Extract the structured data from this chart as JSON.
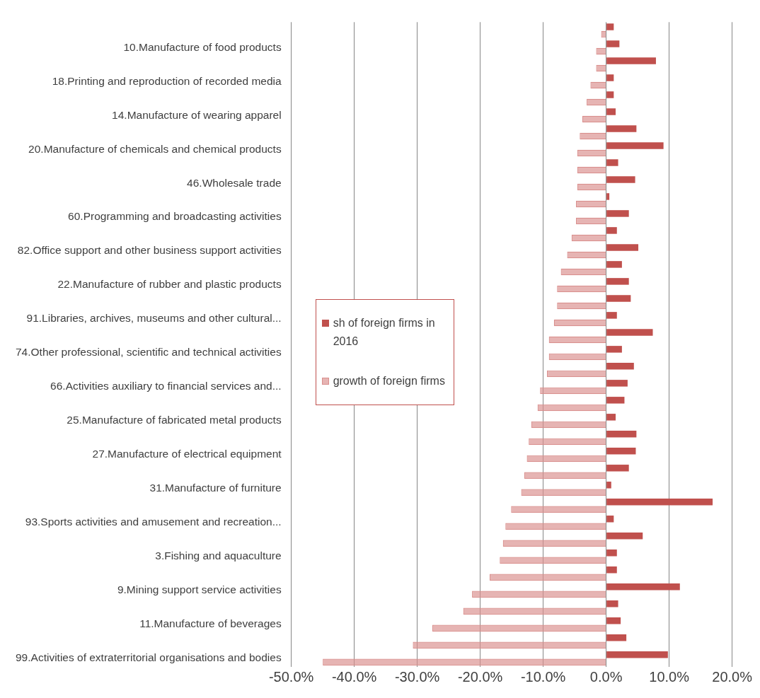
{
  "chart_data": {
    "type": "bar",
    "orientation": "horizontal",
    "categories": [
      null,
      "10.Manufacture of food products",
      null,
      "18.Printing and reproduction of recorded media",
      null,
      "14.Manufacture of wearing apparel",
      null,
      "20.Manufacture of chemicals and chemical products",
      null,
      "46.Wholesale trade",
      null,
      "60.Programming and broadcasting activities",
      null,
      "82.Office support and other business support activities",
      null,
      "22.Manufacture of rubber and plastic products",
      null,
      "91.Libraries, archives, museums and other cultural...",
      null,
      "74.Other professional, scientific and technical activities",
      null,
      "66.Activities auxiliary to financial services and...",
      null,
      "25.Manufacture of fabricated metal products",
      null,
      "27.Manufacture of electrical equipment",
      null,
      "31.Manufacture of furniture",
      null,
      "93.Sports activities and amusement and recreation...",
      null,
      "3.Fishing and aquaculture",
      null,
      "9.Mining support service activities",
      null,
      "11.Manufacture of beverages",
      null,
      "99.Activities of extraterritorial organisations and bodies"
    ],
    "series": [
      {
        "name": "sh of foreign firms in 2016",
        "color": "#c0504d",
        "values": [
          1.2,
          2.1,
          7.9,
          1.2,
          1.2,
          1.5,
          4.8,
          9.1,
          1.9,
          4.6,
          0.5,
          3.6,
          1.7,
          5.1,
          2.5,
          3.6,
          3.9,
          1.7,
          7.4,
          2.5,
          4.4,
          3.4,
          2.9,
          1.5,
          4.8,
          4.7,
          3.6,
          0.8,
          16.9,
          1.2,
          5.8,
          1.7,
          1.7,
          11.7,
          1.9,
          2.3,
          3.2,
          9.8
        ]
      },
      {
        "name": "growth of foreign firms",
        "color": "#d98f8d",
        "values": [
          -0.8,
          -1.6,
          -1.6,
          -2.5,
          -3.1,
          -3.8,
          -4.2,
          -4.6,
          -4.6,
          -4.6,
          -4.8,
          -4.8,
          -5.5,
          -6.2,
          -7.2,
          -7.8,
          -7.8,
          -8.3,
          -9.1,
          -9.1,
          -9.4,
          -10.5,
          -10.9,
          -11.9,
          -12.3,
          -12.6,
          -13.0,
          -13.5,
          -15.1,
          -16.0,
          -16.4,
          -16.9,
          -18.5,
          -21.3,
          -22.7,
          -27.6,
          -30.7,
          -45.0
        ]
      }
    ],
    "xlim": [
      -50,
      20
    ],
    "xticks": [
      {
        "value": -50,
        "label": "-50.0%"
      },
      {
        "value": -40,
        "label": "-40.0%"
      },
      {
        "value": -30,
        "label": "-30.0%"
      },
      {
        "value": -20,
        "label": "-20.0%"
      },
      {
        "value": -10,
        "label": "-10.0%"
      },
      {
        "value": 0,
        "label": "0.0%"
      },
      {
        "value": 10,
        "label": "10.0%"
      },
      {
        "value": 20,
        "label": "20.0%"
      }
    ],
    "grid": "x",
    "legend": "left"
  }
}
